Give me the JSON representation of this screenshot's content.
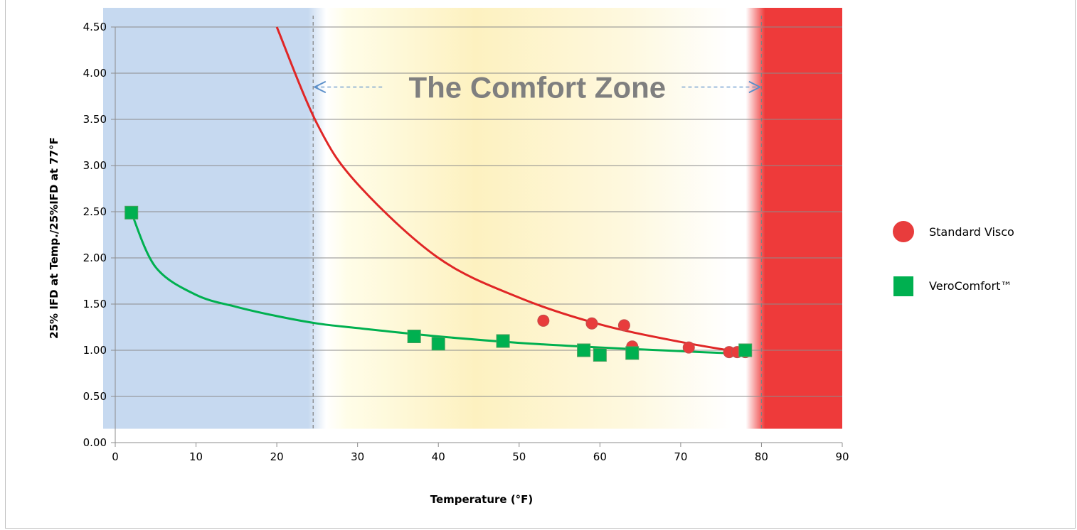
{
  "chart_data": {
    "type": "scatter",
    "xlabel": "Temperature (°F)",
    "ylabel": "25% IFD  at Temp./25%IFD at 77°F",
    "xlim": [
      0,
      90
    ],
    "ylim": [
      0,
      4.5
    ],
    "x_ticks": [
      "0",
      "10",
      "20",
      "30",
      "40",
      "50",
      "60",
      "70",
      "80",
      "90"
    ],
    "y_ticks": [
      "0.00",
      "0.50",
      "1.00",
      "1.50",
      "2.00",
      "2.50",
      "3.00",
      "3.50",
      "4.00",
      "4.50"
    ],
    "grid": "horizontal",
    "legend_position": "right",
    "annotation": "The Comfort Zone",
    "comfort_zone": [
      24.5,
      80
    ],
    "bands": [
      {
        "from": 0,
        "to": 24.5,
        "color": "#c6d9f0",
        "meaning": "cold"
      },
      {
        "from": 24.5,
        "to": 80,
        "color": "#fff6cc",
        "meaning": "comfort"
      },
      {
        "from": 80,
        "to": 90,
        "color": "#ee3a3a",
        "meaning": "hot"
      }
    ],
    "series": [
      {
        "name": "Standard Visco",
        "marker": "circle",
        "color": "#e83c3c",
        "points": [
          [
            53,
            1.32
          ],
          [
            59,
            1.29
          ],
          [
            63,
            1.27
          ],
          [
            64,
            1.04
          ],
          [
            71,
            1.03
          ],
          [
            76,
            0.98
          ],
          [
            77,
            0.98
          ],
          [
            78,
            0.98
          ]
        ],
        "trend": "power",
        "trend_points": [
          [
            20,
            4.5
          ],
          [
            25,
            3.45
          ],
          [
            30,
            2.8
          ],
          [
            40,
            2.0
          ],
          [
            50,
            1.57
          ],
          [
            60,
            1.28
          ],
          [
            70,
            1.09
          ],
          [
            78,
            0.97
          ]
        ]
      },
      {
        "name": "VeroComfort™",
        "marker": "square",
        "color": "#00b050",
        "points": [
          [
            2,
            2.49
          ],
          [
            37,
            1.15
          ],
          [
            40,
            1.07
          ],
          [
            48,
            1.1
          ],
          [
            58,
            1.0
          ],
          [
            60,
            0.95
          ],
          [
            64,
            0.97
          ],
          [
            78,
            1.0
          ]
        ],
        "trend": "logarithmic",
        "trend_points": [
          [
            2,
            2.49
          ],
          [
            5,
            1.9
          ],
          [
            10,
            1.6
          ],
          [
            15,
            1.47
          ],
          [
            20,
            1.37
          ],
          [
            25,
            1.29
          ],
          [
            30,
            1.24
          ],
          [
            40,
            1.15
          ],
          [
            50,
            1.08
          ],
          [
            60,
            1.03
          ],
          [
            70,
            0.99
          ],
          [
            78,
            0.96
          ]
        ]
      }
    ]
  }
}
